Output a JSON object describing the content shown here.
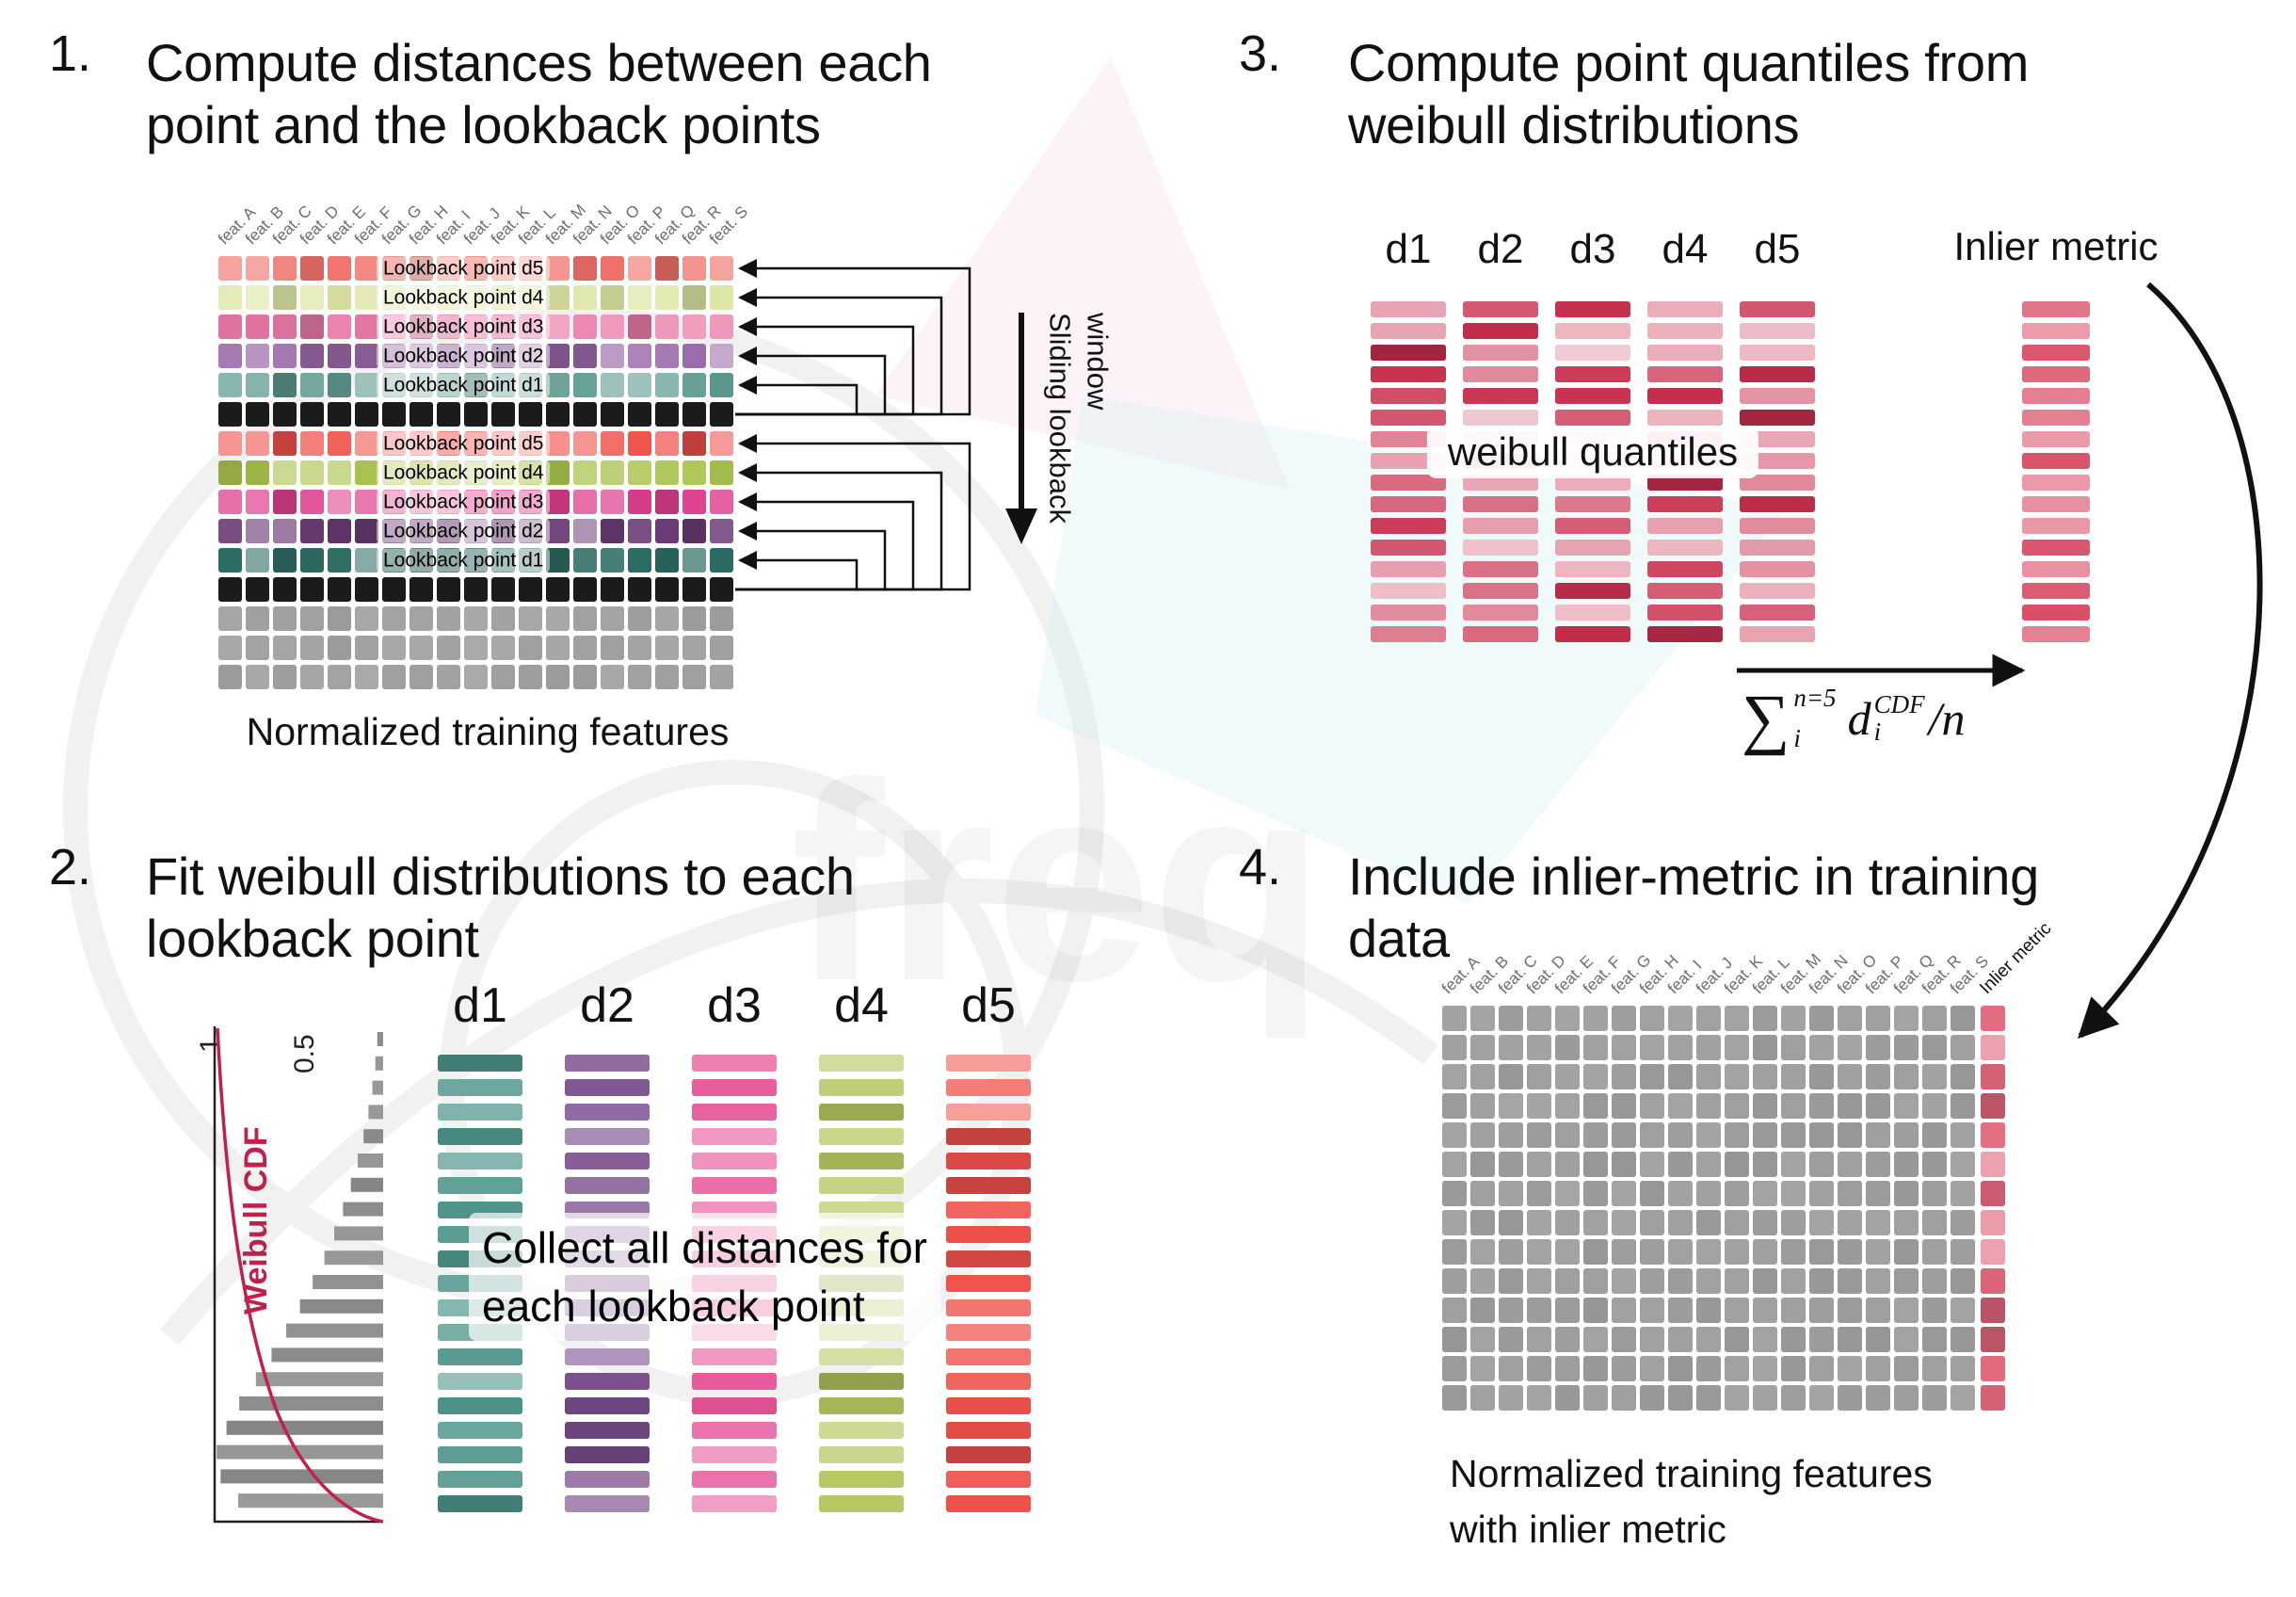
{
  "watermark": {
    "text": "freq"
  },
  "step1": {
    "number": "1.",
    "title_lines": [
      "Compute distances between each",
      "point and the lookback points"
    ],
    "feature_labels": [
      "feat. A",
      "feat. B",
      "feat. C",
      "feat. D",
      "feat. E",
      "feat. F",
      "feat. G",
      "feat. H",
      "feat. I",
      "feat. J",
      "feat. K",
      "feat. L",
      "feat. M",
      "feat. N",
      "feat. O",
      "feat. P",
      "feat. Q",
      "feat. R",
      "feat. S"
    ],
    "rows": [
      {
        "kind": "lookback",
        "label": "Lookback point d5",
        "color": "#f1716a"
      },
      {
        "kind": "lookback",
        "label": "Lookback point d4",
        "color": "#dde5a4"
      },
      {
        "kind": "lookback",
        "label": "Lookback point d3",
        "color": "#eb7aa9"
      },
      {
        "kind": "lookback",
        "label": "Lookback point d2",
        "color": "#9a68a9"
      },
      {
        "kind": "lookback",
        "label": "Lookback point d1",
        "color": "#5d988f"
      },
      {
        "kind": "black",
        "color": "#1b1b1b"
      },
      {
        "kind": "lookback",
        "label": "Lookback point d5",
        "color": "#ef4f49"
      },
      {
        "kind": "lookback",
        "label": "Lookback point d4",
        "color": "#a9c24e"
      },
      {
        "kind": "lookback",
        "label": "Lookback point d3",
        "color": "#de3e8d"
      },
      {
        "kind": "lookback",
        "label": "Lookback point d2",
        "color": "#6c3d78"
      },
      {
        "kind": "lookback",
        "label": "Lookback point d1",
        "color": "#2d6c64"
      },
      {
        "kind": "black",
        "color": "#1b1b1b"
      },
      {
        "kind": "gray",
        "color": "#a3a3a3"
      },
      {
        "kind": "gray",
        "color": "#a3a3a3"
      },
      {
        "kind": "gray",
        "color": "#a3a3a3"
      }
    ],
    "caption": "Normalized training features",
    "sliding_lines": [
      "Sliding lookback",
      "window"
    ]
  },
  "step2": {
    "number": "2.",
    "title_lines": [
      "Fit weibull distributions to each",
      "lookback point"
    ],
    "plot": {
      "axis_label": "Weibull CDF",
      "tick_labels": [
        "1",
        "0.5"
      ],
      "bar_values": [
        6,
        8,
        11,
        15,
        20,
        26,
        33,
        41,
        50,
        60,
        72,
        85,
        99,
        114,
        130,
        147,
        160,
        170,
        166,
        148
      ]
    },
    "columns": [
      {
        "name": "d1",
        "color": "#4d948a"
      },
      {
        "name": "d2",
        "color": "#7b4e8e"
      },
      {
        "name": "d3",
        "color": "#e65197"
      },
      {
        "name": "d4",
        "color": "#b4c75f"
      },
      {
        "name": "d5",
        "color": "#f0514b"
      }
    ],
    "bars_per_column": 19,
    "overlay_lines": [
      "Collect all distances for",
      "each lookback point"
    ]
  },
  "step3": {
    "number": "3.",
    "title_lines": [
      "Compute point quantiles from",
      "weibull distributions"
    ],
    "column_labels": [
      "d1",
      "d2",
      "d3",
      "d4",
      "d5"
    ],
    "bars_per_column": 16,
    "bar_color": "#c9304f",
    "overlay_text": "weibull quantiles",
    "inlier_label": "Inlier metric",
    "inlier_color": "#d84a63",
    "formula": {
      "sum": "∑",
      "sup": "n=5",
      "sub": "i",
      "term": "d",
      "term_sup": "CDF",
      "term_sub": "i",
      "divisor": "/n"
    }
  },
  "step4": {
    "number": "4.",
    "title_lines": [
      "Include inlier-metric in training",
      "data"
    ],
    "feature_labels": [
      "feat. A",
      "feat. B",
      "feat. C",
      "feat. D",
      "feat. E",
      "feat. F",
      "feat. G",
      "feat. H",
      "feat. I",
      "feat. J",
      "feat. K",
      "feat. L",
      "feat. M",
      "feat. N",
      "feat. O",
      "feat. P",
      "feat. Q",
      "feat. R",
      "feat. S"
    ],
    "inlier_label": "Inlier metric",
    "grid": {
      "rows": 14,
      "cols": 19,
      "cell_color": "#9f9f9f",
      "inlier_color": "#e2677c"
    },
    "caption_lines": [
      "Normalized training features",
      "with inlier metric"
    ]
  }
}
